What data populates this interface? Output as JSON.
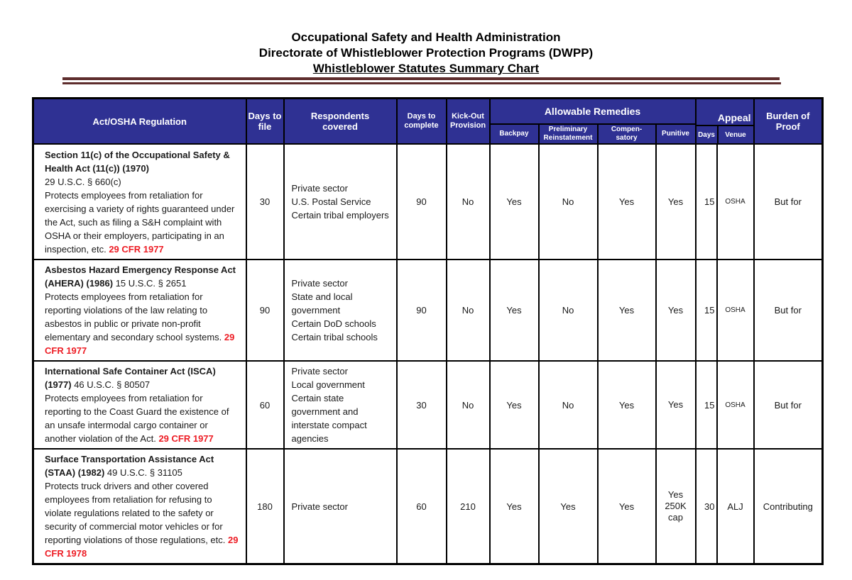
{
  "title": {
    "line1": "Occupational Safety and Health Administration",
    "line2": "Directorate of Whistleblower Protection Programs (DWPP)",
    "line3": "Whistleblower Statutes Summary Chart"
  },
  "colors": {
    "header_bg": "#2f3193",
    "header_text": "#ffffff",
    "red_citation": "#ed1c24",
    "rule_maroon": "#5e2d2d",
    "border": "#000000"
  },
  "table": {
    "headers": {
      "act": "Act/OSHA Regulation",
      "days_to_file": "Days to file",
      "respondents": "Respondents covered",
      "days_to_complete": "Days to complete",
      "kick_out": "Kick-Out Provision",
      "allowable_remedies": "Allowable Remedies",
      "backpay": "Backpay",
      "preliminary_reinstatement": "Preliminary Reinstatement",
      "compensatory": "Compen-satory",
      "punitive": "Punitive",
      "appeal": "Appeal",
      "appeal_days": "Days",
      "appeal_venue": "Venue",
      "burden": "Burden of Proof"
    },
    "rows": [
      {
        "act_segments": [
          {
            "style": "bold",
            "text": "Section 11(c) of the Occupational Safety & Health Act (11(c)) (1970)"
          },
          {
            "style": "break"
          },
          {
            "style": "normal",
            "text": "29 U.S.C. § 660(c)"
          },
          {
            "style": "break"
          },
          {
            "style": "normal",
            "text": "Protects employees from retaliation for exercising a variety of rights guaranteed under the Act, such as filing a S&H complaint with OSHA or their employers, participating in an inspection, etc. "
          },
          {
            "style": "redbold",
            "text": "29 CFR 1977"
          }
        ],
        "days_to_file": "30",
        "respondents": [
          "Private sector",
          "U.S. Postal Service",
          "Certain tribal employers"
        ],
        "days_to_complete": "90",
        "kick_out": "No",
        "backpay": "Yes",
        "preliminary_reinstatement": "No",
        "compensatory": "Yes",
        "punitive": "Yes",
        "appeal_days": "15",
        "appeal_venue": "OSHA",
        "burden": "But for"
      },
      {
        "act_segments": [
          {
            "style": "bold",
            "text": "Asbestos Hazard Emergency Response Act (AHERA) (1986)"
          },
          {
            "style": "normal",
            "text": " 15 U.S.C. § 2651"
          },
          {
            "style": "break"
          },
          {
            "style": "normal",
            "text": "Protects employees from retaliation for reporting violations of the law relating to asbestos in public or private non-profit elementary and secondary school systems. "
          },
          {
            "style": "redbold",
            "text": "29 CFR 1977"
          }
        ],
        "days_to_file": "90",
        "respondents": [
          "Private sector",
          "State and local government",
          "Certain DoD schools",
          "Certain tribal schools"
        ],
        "days_to_complete": "90",
        "kick_out": "No",
        "backpay": "Yes",
        "preliminary_reinstatement": "No",
        "compensatory": "Yes",
        "punitive": "Yes",
        "appeal_days": "15",
        "appeal_venue": "OSHA",
        "burden": "But for"
      },
      {
        "act_segments": [
          {
            "style": "bold",
            "text": "International Safe Container Act (ISCA) (1977)"
          },
          {
            "style": "normal",
            "text": " 46 U.S.C. § 80507"
          },
          {
            "style": "break"
          },
          {
            "style": "normal",
            "text": "Protects employees from retaliation for reporting to the Coast Guard the existence of an unsafe intermodal cargo container or another violation of the Act. "
          },
          {
            "style": "redbold",
            "text": "29 CFR 1977"
          }
        ],
        "days_to_file": "60",
        "respondents": [
          "Private sector",
          "Local government",
          "Certain state government and interstate compact agencies"
        ],
        "days_to_complete": "30",
        "kick_out": "No",
        "backpay": "Yes",
        "preliminary_reinstatement": "No",
        "compensatory": "Yes",
        "punitive": "Yes",
        "appeal_days": "15",
        "appeal_venue": "OSHA",
        "burden": "But for"
      },
      {
        "act_segments": [
          {
            "style": "bold",
            "text": "Surface Transportation Assistance Act (STAA) (1982)"
          },
          {
            "style": "normal",
            "text": " 49 U.S.C. § 31105"
          },
          {
            "style": "break"
          },
          {
            "style": "normal",
            "text": "Protects truck drivers and other covered employees from retaliation for refusing to violate regulations related to the safety or security of commercial motor vehicles or for reporting violations of those regulations, etc. "
          },
          {
            "style": "redbold",
            "text": "29 CFR 1978"
          }
        ],
        "days_to_file": "180",
        "respondents": [
          "Private sector"
        ],
        "days_to_complete": "60",
        "kick_out": "210",
        "backpay": "Yes",
        "preliminary_reinstatement": "Yes",
        "compensatory": "Yes",
        "punitive": "Yes 250K cap",
        "appeal_days": "30",
        "appeal_venue": "ALJ",
        "burden": "Contributing"
      }
    ]
  }
}
